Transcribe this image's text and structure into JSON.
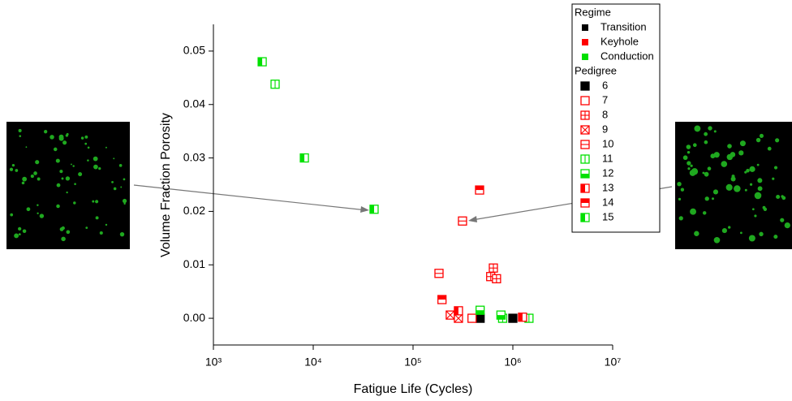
{
  "chart_data": {
    "type": "scatter",
    "xlabel": "Fatigue Life (Cycles)",
    "ylabel": "Volume Fraction Porosity",
    "xscale": "log",
    "xlim": [
      1000,
      10000000
    ],
    "xticks": [
      {
        "value": 1000,
        "label": "10³"
      },
      {
        "value": 10000,
        "label": "10⁴"
      },
      {
        "value": 100000,
        "label": "10⁵"
      },
      {
        "value": 1000000,
        "label": "10⁶"
      },
      {
        "value": 10000000,
        "label": "10⁷"
      }
    ],
    "ylim": [
      -0.005,
      0.055
    ],
    "yticks": [
      {
        "value": 0,
        "label": "0.00"
      },
      0.01,
      0.02,
      0.03,
      0.04,
      0.05
    ],
    "legend_title_regime": "Regime",
    "regimes": [
      {
        "name": "Transition",
        "color": "#000000"
      },
      {
        "name": "Keyhole",
        "color": "#ff0000"
      },
      {
        "name": "Conduction",
        "color": "#00e000"
      }
    ],
    "legend_title_series": "Pedigree",
    "series": [
      {
        "name": "6",
        "color": "#000000",
        "marker": "filled",
        "x": [
          470000,
          1000000
        ],
        "y": [
          0.0,
          0.0
        ]
      },
      {
        "name": "7",
        "color": "#ff0000",
        "marker": "open",
        "x": [
          390000
        ],
        "y": [
          0.0
        ]
      },
      {
        "name": "8",
        "color": "#ff0000",
        "marker": "plus",
        "x": [
          638000,
          600000,
          686000
        ],
        "y": [
          0.0094,
          0.0078,
          0.0074
        ]
      },
      {
        "name": "9",
        "color": "#ff0000",
        "marker": "cross",
        "x": [
          236000,
          285000
        ],
        "y": [
          0.0006,
          0.0
        ]
      },
      {
        "name": "10",
        "color": "#ff0000",
        "marker": "hline",
        "x": [
          313000,
          182000
        ],
        "y": [
          0.0182,
          0.0084
        ]
      },
      {
        "name": "11",
        "color": "#00e000",
        "marker": "vline",
        "x": [
          4150,
          790000,
          1450000
        ],
        "y": [
          0.0438,
          0.0,
          0.0
        ]
      },
      {
        "name": "12",
        "color": "#00e000",
        "marker": "half-bottom",
        "x": [
          470000,
          760000
        ],
        "y": [
          0.0015,
          0.0006
        ]
      },
      {
        "name": "13",
        "color": "#ff0000",
        "marker": "half-left",
        "x": [
          285000,
          1250000
        ],
        "y": [
          0.0014,
          0.0002
        ]
      },
      {
        "name": "14",
        "color": "#ff0000",
        "marker": "half-top",
        "x": [
          464000,
          195000
        ],
        "y": [
          0.024,
          0.0035
        ]
      },
      {
        "name": "15",
        "color": "#00e000",
        "marker": "half-left",
        "x": [
          3080,
          8150,
          40700
        ],
        "y": [
          0.048,
          0.03,
          0.0204
        ]
      }
    ]
  }
}
